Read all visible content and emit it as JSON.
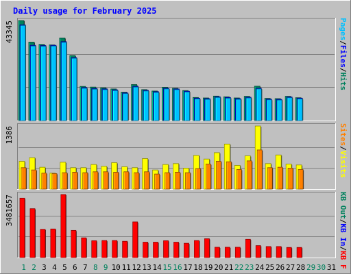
{
  "chart_data": {
    "type": "bar",
    "title": "Daily usage for February 2025",
    "x": [
      "1",
      "2",
      "3",
      "4",
      "5",
      "6",
      "7",
      "8",
      "9",
      "10",
      "11",
      "12",
      "13",
      "14",
      "15",
      "16",
      "17",
      "18",
      "19",
      "20",
      "21",
      "22",
      "23",
      "24",
      "25",
      "26",
      "27",
      "28",
      "29",
      "30",
      "31"
    ],
    "weekend_days": [
      "1",
      "2",
      "8",
      "9",
      "15",
      "16",
      "22",
      "23",
      "29",
      "30"
    ],
    "panels": [
      {
        "name": "hits-files-pages",
        "max_label": "43345",
        "ymax": 43345,
        "series": [
          {
            "name": "Hits",
            "color": "#00805c",
            "values": [
              43345,
              34000,
              33000,
              32800,
              35800,
              28200,
              14800,
              14500,
              14200,
              13700,
              12300,
              15600,
              13400,
              12800,
              14400,
              14000,
              13000,
              10000,
              9800,
              10600,
              10300,
              9800,
              10500,
              14900,
              9600,
              9500,
              10500,
              9900
            ]
          },
          {
            "name": "Files",
            "color": "#0000ff",
            "values": [
              41500,
              32600,
              32500,
              32600,
              34200,
              27300,
              14300,
              13900,
              13700,
              13300,
              12000,
              14800,
              13100,
              12500,
              14000,
              13700,
              12700,
              9700,
              9500,
              10300,
              10000,
              9500,
              10100,
              14000,
              9300,
              9200,
              10200,
              9700
            ]
          },
          {
            "name": "Pages",
            "color": "#00c0ff",
            "values": [
              41500,
              32600,
              32500,
              32600,
              34200,
              27300,
              14300,
              13900,
              13700,
              13300,
              12000,
              14800,
              13100,
              12500,
              14000,
              13700,
              12700,
              9700,
              9500,
              10300,
              10000,
              9500,
              10100,
              14000,
              9300,
              9200,
              10200,
              9700
            ]
          }
        ],
        "legend": [
          {
            "label": "Hits",
            "color": "#00805c"
          },
          {
            "label": "/",
            "color": "#000000"
          },
          {
            "label": "Files",
            "color": "#0000ff"
          },
          {
            "label": "/",
            "color": "#000000"
          },
          {
            "label": "Pages",
            "color": "#00c0ff"
          }
        ]
      },
      {
        "name": "visits-sites",
        "max_label": "1386",
        "ymax": 1386,
        "series": [
          {
            "name": "Visits",
            "color": "#ffff00",
            "values": [
              610,
              690,
              480,
              350,
              590,
              470,
              470,
              540,
              500,
              580,
              490,
              470,
              670,
              420,
              540,
              560,
              460,
              740,
              660,
              800,
              990,
              520,
              730,
              1386,
              560,
              750,
              550,
              530
            ]
          },
          {
            "name": "Sites",
            "color": "#ff8000",
            "values": [
              470,
              420,
              350,
              340,
              360,
              370,
              360,
              380,
              380,
              370,
              380,
              360,
              380,
              330,
              360,
              370,
              360,
              450,
              550,
              610,
              600,
              430,
              620,
              860,
              470,
              480,
              460,
              430
            ]
          }
        ],
        "legend": [
          {
            "label": "Visits",
            "color": "#ffff00"
          },
          {
            "label": "/",
            "color": "#000000"
          },
          {
            "label": "Sites",
            "color": "#ff8000"
          }
        ]
      },
      {
        "name": "kbytes",
        "max_label": "3481657",
        "ymax": 3481657,
        "series": [
          {
            "name": "KBytes",
            "color": "#ff0000",
            "values": [
              3280000,
              2700000,
              1560000,
              1580000,
              3481657,
              1500000,
              1090000,
              930000,
              940000,
              940000,
              900000,
              1970000,
              850000,
              850000,
              930000,
              850000,
              790000,
              940000,
              1040000,
              570000,
              570000,
              570000,
              1010000,
              660000,
              610000,
              610000,
              560000,
              560000
            ]
          }
        ],
        "legend": [
          {
            "label": "KB F",
            "color": "#ff0000"
          },
          {
            "label": "/",
            "color": "#000000"
          },
          {
            "label": "KB In",
            "color": "#0000ff"
          },
          {
            "label": "/",
            "color": "#000000"
          },
          {
            "label": "KB Out",
            "color": "#00805c"
          }
        ]
      }
    ]
  },
  "colors": {
    "background": "#c0c0c0",
    "title": "#0000ff",
    "weekend_label": "#00805c",
    "weekday_label": "#000000",
    "grid": "#808080"
  }
}
